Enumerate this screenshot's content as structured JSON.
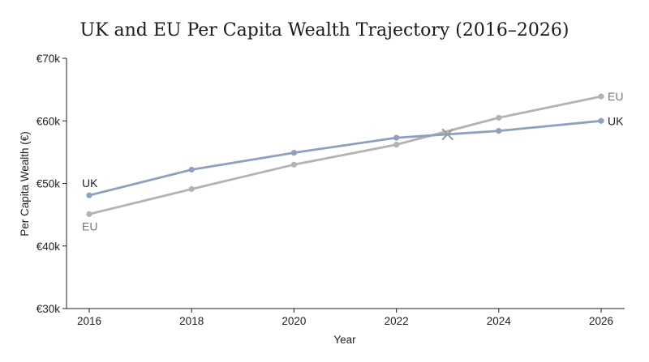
{
  "chart_data": {
    "type": "line",
    "title": "UK and EU Per Capita Wealth Trajectory (2016–2026)",
    "xlabel": "Year",
    "ylabel": "Per Capita Wealth (€)",
    "x": [
      2016,
      2018,
      2020,
      2022,
      2024,
      2026
    ],
    "x_tick_labels": [
      "2016",
      "2018",
      "2020",
      "2022",
      "2024",
      "2026"
    ],
    "y_ticks": [
      30000,
      40000,
      50000,
      60000,
      70000
    ],
    "y_tick_labels": [
      "€30k",
      "€40k",
      "€50k",
      "€60k",
      "€70k"
    ],
    "xlim": [
      2016,
      2026
    ],
    "ylim": [
      30000,
      70000
    ],
    "grid": false,
    "series": [
      {
        "name": "UK",
        "color": "#8da0c1",
        "label_color": "#222222",
        "values": [
          48100,
          52200,
          54900,
          57300,
          58400,
          60000
        ],
        "start_label": "UK",
        "end_label": "UK"
      },
      {
        "name": "EU",
        "color": "#b3b3b3",
        "label_color": "#777777",
        "values": [
          45100,
          49100,
          53000,
          56200,
          60500,
          63900
        ],
        "start_label": "EU",
        "end_label": "EU"
      }
    ],
    "crossover": {
      "x": 2023,
      "y": 57850,
      "marker": "x-mark",
      "color": "#9a9a9a"
    }
  }
}
